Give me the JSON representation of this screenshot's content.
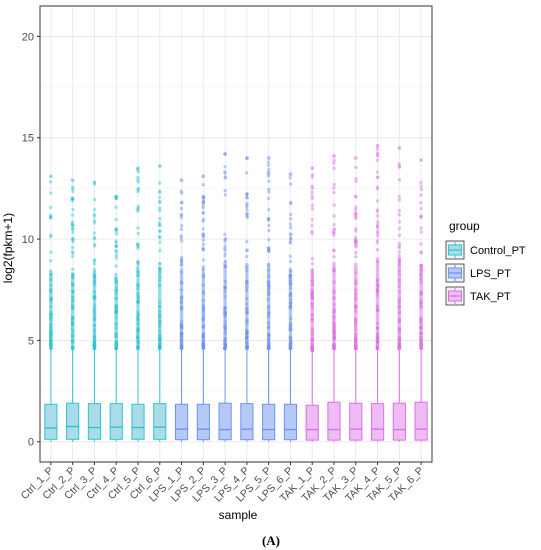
{
  "chart_data": {
    "type": "boxplot",
    "xlabel": "sample",
    "ylabel": "log2(fpkm+1)",
    "ylim": [
      -1,
      21.5
    ],
    "yticks": [
      0,
      5,
      10,
      15,
      20
    ],
    "grid": true,
    "legend_title": "group",
    "legend_position": "right",
    "panel_label": "(A)",
    "groups": [
      {
        "name": "Control_PT",
        "color": "#2ec4d4",
        "fill": "#a9dce6"
      },
      {
        "name": "LPS_PT",
        "color": "#6e93f0",
        "fill": "#b6c9f6"
      },
      {
        "name": "TAK_PT",
        "color": "#dd6fe8",
        "fill": "#eebcf3"
      }
    ],
    "samples": [
      {
        "label": "Ctrl_1_P",
        "group": "Control_PT",
        "whisker_low": 0,
        "q1": 0.12,
        "median": 0.68,
        "q3": 1.85,
        "whisker_high": 4.6,
        "max": 13.1
      },
      {
        "label": "Ctrl_2_P",
        "group": "Control_PT",
        "whisker_low": 0,
        "q1": 0.12,
        "median": 0.75,
        "q3": 1.9,
        "whisker_high": 4.6,
        "max": 12.9
      },
      {
        "label": "Ctrl_3_P",
        "group": "Control_PT",
        "whisker_low": 0,
        "q1": 0.12,
        "median": 0.7,
        "q3": 1.88,
        "whisker_high": 4.6,
        "max": 12.8
      },
      {
        "label": "Ctrl_4_P",
        "group": "Control_PT",
        "whisker_low": 0,
        "q1": 0.12,
        "median": 0.72,
        "q3": 1.88,
        "whisker_high": 4.6,
        "max": 12.1
      },
      {
        "label": "Ctrl_5_P",
        "group": "Control_PT",
        "whisker_low": 0,
        "q1": 0.12,
        "median": 0.7,
        "q3": 1.85,
        "whisker_high": 4.6,
        "max": 13.5
      },
      {
        "label": "Ctrl_6_P",
        "group": "Control_PT",
        "whisker_low": 0,
        "q1": 0.12,
        "median": 0.72,
        "q3": 1.88,
        "whisker_high": 4.6,
        "max": 13.6
      },
      {
        "label": "LPS_1_P",
        "group": "LPS_PT",
        "whisker_low": 0,
        "q1": 0.1,
        "median": 0.62,
        "q3": 1.85,
        "whisker_high": 4.6,
        "max": 12.9
      },
      {
        "label": "LPS_2_P",
        "group": "LPS_PT",
        "whisker_low": 0,
        "q1": 0.1,
        "median": 0.62,
        "q3": 1.85,
        "whisker_high": 4.6,
        "max": 13.1
      },
      {
        "label": "LPS_3_P",
        "group": "LPS_PT",
        "whisker_low": 0,
        "q1": 0.1,
        "median": 0.6,
        "q3": 1.9,
        "whisker_high": 4.6,
        "max": 14.2
      },
      {
        "label": "LPS_4_P",
        "group": "LPS_PT",
        "whisker_low": 0,
        "q1": 0.1,
        "median": 0.62,
        "q3": 1.88,
        "whisker_high": 4.6,
        "max": 14.0
      },
      {
        "label": "LPS_5_P",
        "group": "LPS_PT",
        "whisker_low": 0,
        "q1": 0.1,
        "median": 0.6,
        "q3": 1.85,
        "whisker_high": 4.6,
        "max": 14.0
      },
      {
        "label": "LPS_6_P",
        "group": "LPS_PT",
        "whisker_low": 0,
        "q1": 0.1,
        "median": 0.6,
        "q3": 1.85,
        "whisker_high": 4.6,
        "max": 13.2
      },
      {
        "label": "TAK_1_P",
        "group": "TAK_PT",
        "whisker_low": 0,
        "q1": 0.08,
        "median": 0.6,
        "q3": 1.8,
        "whisker_high": 4.5,
        "max": 13.5
      },
      {
        "label": "TAK_2_P",
        "group": "TAK_PT",
        "whisker_low": 0,
        "q1": 0.08,
        "median": 0.6,
        "q3": 1.95,
        "whisker_high": 4.6,
        "max": 14.1
      },
      {
        "label": "TAK_3_P",
        "group": "TAK_PT",
        "whisker_low": 0,
        "q1": 0.08,
        "median": 0.62,
        "q3": 1.9,
        "whisker_high": 4.6,
        "max": 14.0
      },
      {
        "label": "TAK_4_P",
        "group": "TAK_PT",
        "whisker_low": 0,
        "q1": 0.08,
        "median": 0.62,
        "q3": 1.88,
        "whisker_high": 4.6,
        "max": 14.6
      },
      {
        "label": "TAK_5_P",
        "group": "TAK_PT",
        "whisker_low": 0,
        "q1": 0.08,
        "median": 0.6,
        "q3": 1.9,
        "whisker_high": 4.6,
        "max": 14.5
      },
      {
        "label": "TAK_6_P",
        "group": "TAK_PT",
        "whisker_low": 0,
        "q1": 0.08,
        "median": 0.62,
        "q3": 1.95,
        "whisker_high": 4.6,
        "max": 13.9
      }
    ]
  }
}
